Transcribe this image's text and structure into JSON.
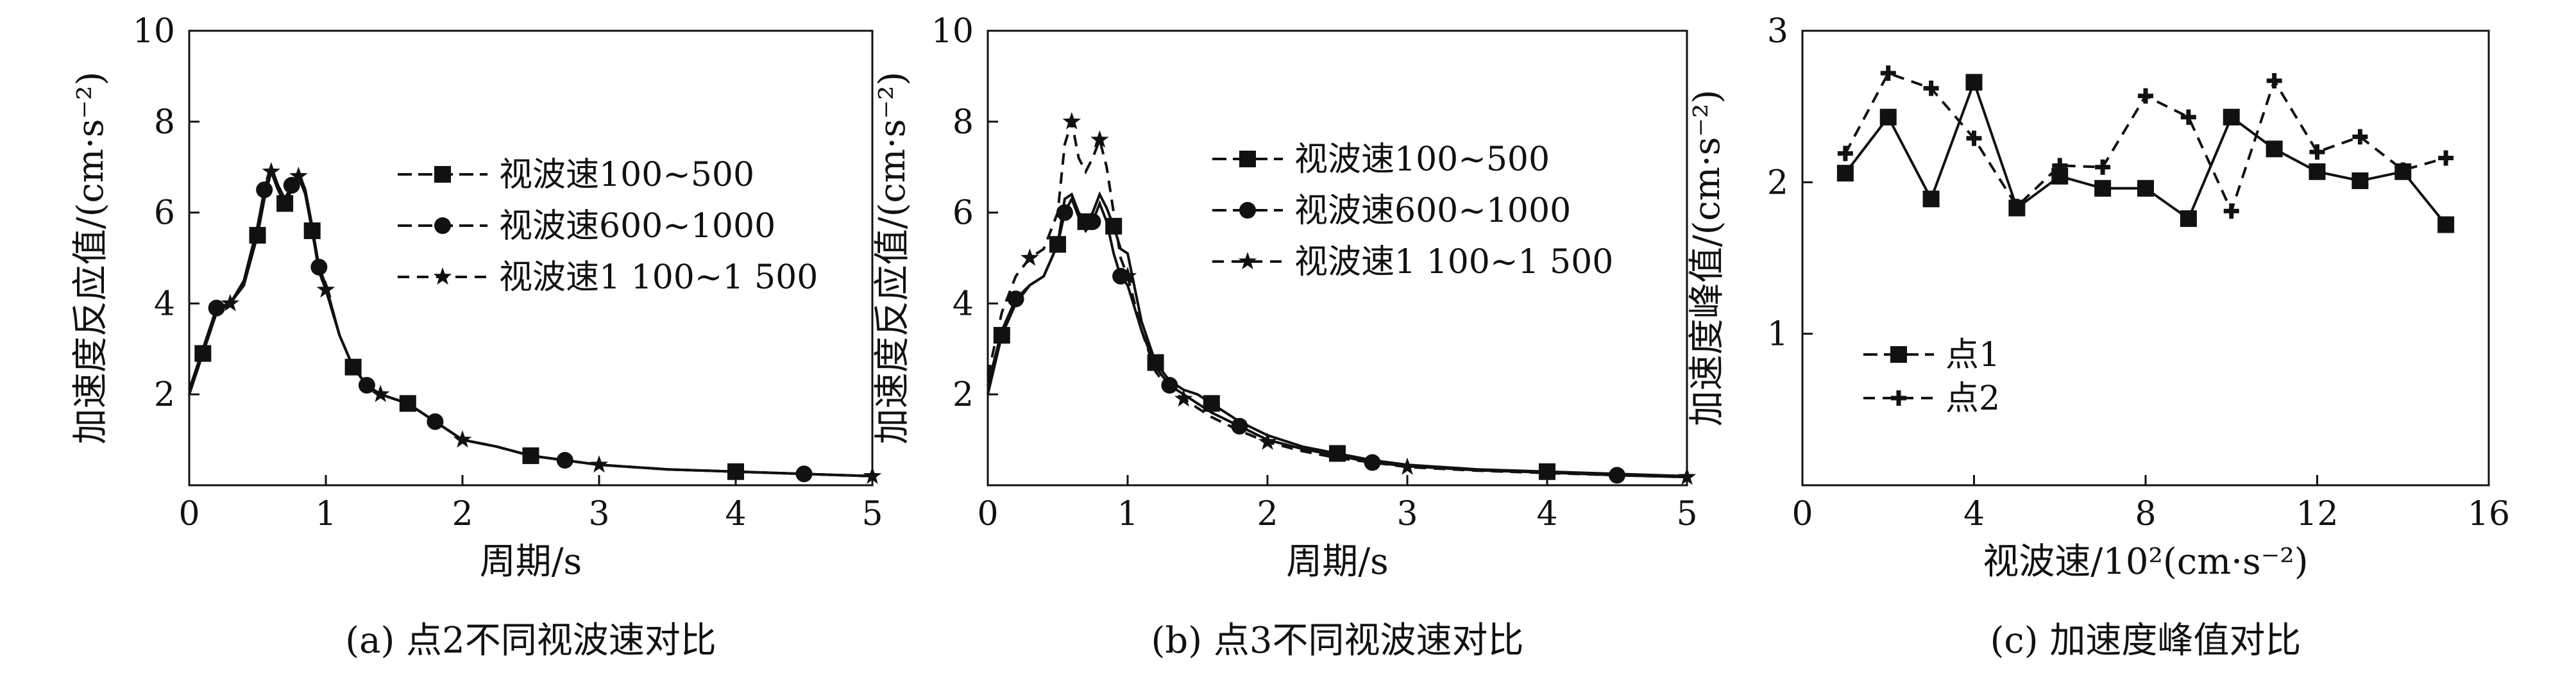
{
  "chart_data": [
    {
      "type": "line",
      "caption": "(a) 点2不同视波速对比",
      "xlabel": "周期/s",
      "ylabel": "加速度反应值/(cm·s⁻²)",
      "xlim": [
        0,
        5
      ],
      "ylim": [
        0,
        10
      ],
      "xticks": [
        "0",
        "1",
        "2",
        "3",
        "4",
        "5"
      ],
      "yticks": [
        "2",
        "4",
        "6",
        "8",
        "10"
      ],
      "legend_position": "upper-right",
      "x": [
        0,
        0.1,
        0.2,
        0.3,
        0.4,
        0.5,
        0.55,
        0.6,
        0.65,
        0.7,
        0.75,
        0.8,
        0.85,
        0.9,
        0.95,
        1.0,
        1.1,
        1.2,
        1.3,
        1.4,
        1.5,
        1.6,
        1.8,
        2.0,
        2.25,
        2.5,
        2.75,
        3.0,
        3.5,
        4.0,
        4.5,
        5.0
      ],
      "series": [
        {
          "name": "视波速100~500",
          "marker": "square",
          "dash": "solid",
          "values": [
            2.0,
            2.9,
            3.8,
            4.0,
            4.4,
            5.5,
            6.3,
            6.9,
            6.5,
            6.2,
            6.5,
            6.8,
            6.4,
            5.6,
            4.7,
            4.3,
            3.3,
            2.6,
            2.2,
            2.0,
            1.9,
            1.8,
            1.4,
            1.0,
            0.85,
            0.65,
            0.55,
            0.45,
            0.35,
            0.3,
            0.25,
            0.2
          ]
        },
        {
          "name": "视波速600~1000",
          "marker": "circle",
          "dash": "solid",
          "values": [
            2.1,
            3.0,
            3.9,
            4.0,
            4.5,
            5.7,
            6.5,
            7.0,
            6.6,
            6.3,
            6.6,
            6.9,
            6.5,
            5.7,
            4.8,
            4.4,
            3.3,
            2.6,
            2.2,
            2.0,
            1.9,
            1.8,
            1.4,
            1.0,
            0.85,
            0.65,
            0.55,
            0.45,
            0.35,
            0.3,
            0.25,
            0.2
          ]
        },
        {
          "name": "视波速1 100~1 500",
          "marker": "star",
          "dash": "dashed",
          "values": [
            2.0,
            2.9,
            3.8,
            4.0,
            4.4,
            5.6,
            6.4,
            6.9,
            6.5,
            6.2,
            6.5,
            6.8,
            6.4,
            5.6,
            4.7,
            4.3,
            3.3,
            2.6,
            2.2,
            2.0,
            1.9,
            1.8,
            1.4,
            1.0,
            0.85,
            0.65,
            0.55,
            0.45,
            0.35,
            0.3,
            0.25,
            0.2
          ]
        }
      ]
    },
    {
      "type": "line",
      "caption": "(b) 点3不同视波速对比",
      "xlabel": "周期/s",
      "ylabel": "加速度反应值/(cm·s⁻²)",
      "xlim": [
        0,
        5
      ],
      "ylim": [
        0,
        10
      ],
      "xticks": [
        "0",
        "1",
        "2",
        "3",
        "4",
        "5"
      ],
      "yticks": [
        "2",
        "4",
        "6",
        "8",
        "10"
      ],
      "legend_position": "upper-right",
      "x": [
        0,
        0.1,
        0.2,
        0.3,
        0.4,
        0.5,
        0.55,
        0.6,
        0.65,
        0.7,
        0.75,
        0.8,
        0.85,
        0.9,
        0.95,
        1.0,
        1.1,
        1.2,
        1.3,
        1.4,
        1.5,
        1.6,
        1.8,
        2.0,
        2.25,
        2.5,
        2.75,
        3.0,
        3.5,
        4.0,
        4.5,
        5.0
      ],
      "series": [
        {
          "name": "视波速100~500",
          "marker": "square",
          "dash": "solid",
          "values": [
            2.0,
            3.3,
            4.0,
            4.4,
            4.6,
            5.3,
            6.3,
            6.4,
            6.0,
            5.8,
            6.0,
            6.4,
            6.1,
            5.7,
            5.2,
            5.1,
            3.6,
            2.7,
            2.3,
            2.1,
            2.0,
            1.8,
            1.4,
            1.1,
            0.85,
            0.7,
            0.55,
            0.45,
            0.35,
            0.3,
            0.25,
            0.2
          ]
        },
        {
          "name": "视波速600~1000",
          "marker": "circle",
          "dash": "solid",
          "values": [
            2.2,
            3.4,
            4.1,
            4.4,
            4.6,
            5.3,
            6.0,
            6.3,
            5.9,
            5.6,
            5.8,
            6.2,
            5.8,
            5.1,
            4.6,
            4.4,
            3.4,
            2.6,
            2.2,
            2.0,
            1.8,
            1.6,
            1.3,
            1.0,
            0.8,
            0.65,
            0.5,
            0.42,
            0.33,
            0.28,
            0.22,
            0.18
          ]
        },
        {
          "name": "视波速1 100~1 500",
          "marker": "star",
          "dash": "dashed",
          "values": [
            2.4,
            3.8,
            4.6,
            5.0,
            5.2,
            6.0,
            7.5,
            8.0,
            7.2,
            6.9,
            7.2,
            7.6,
            7.0,
            6.0,
            5.0,
            4.6,
            3.4,
            2.5,
            2.1,
            1.9,
            1.7,
            1.5,
            1.2,
            0.95,
            0.75,
            0.6,
            0.5,
            0.4,
            0.32,
            0.27,
            0.22,
            0.18
          ]
        }
      ]
    },
    {
      "type": "line",
      "caption": "(c) 加速度峰值对比",
      "xlabel": "视波速/10²(cm·s⁻²)",
      "ylabel": "加速度峰值/(cm·s⁻²)",
      "xlim": [
        0,
        16
      ],
      "ylim": [
        0,
        3
      ],
      "xticks": [
        "0",
        "4",
        "8",
        "12",
        "16"
      ],
      "yticks": [
        "1",
        "2",
        "3"
      ],
      "legend_position": "lower-left",
      "x": [
        1,
        2,
        3,
        4,
        5,
        6,
        7,
        8,
        9,
        10,
        11,
        12,
        13,
        14,
        15
      ],
      "series": [
        {
          "name": "点1",
          "marker": "square",
          "dash": "solid",
          "values": [
            2.06,
            2.43,
            1.89,
            2.66,
            1.83,
            2.04,
            1.96,
            1.96,
            1.76,
            2.43,
            2.22,
            2.07,
            2.01,
            2.07,
            1.72
          ]
        },
        {
          "name": "点2",
          "marker": "plus",
          "dash": "dashed",
          "values": [
            2.19,
            2.72,
            2.62,
            2.29,
            1.84,
            2.11,
            2.1,
            2.57,
            2.43,
            1.81,
            2.67,
            2.2,
            2.3,
            2.08,
            2.16
          ]
        }
      ]
    }
  ]
}
